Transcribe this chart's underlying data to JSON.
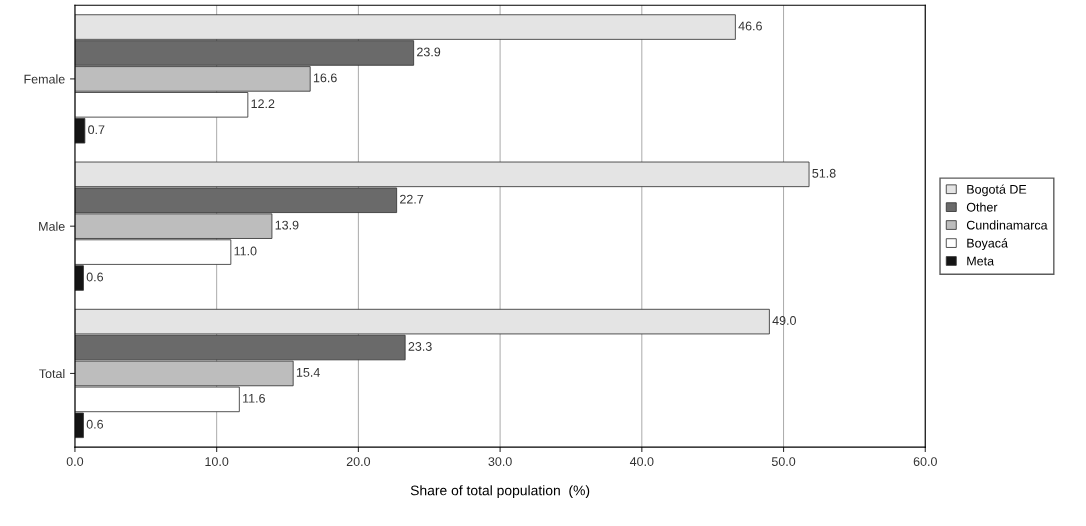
{
  "chart_data": {
    "type": "bar",
    "orientation": "horizontal",
    "xlabel": "Share of total population  (%)",
    "categories": [
      "Female",
      "Male",
      "Total"
    ],
    "series": [
      {
        "name": "Bogotá DE",
        "color": "#e4e4e4",
        "values": [
          46.6,
          51.8,
          49.0
        ],
        "value_labels": [
          "46.6",
          "51.8",
          "49.0"
        ]
      },
      {
        "name": "Other",
        "color": "#6a6a6a",
        "values": [
          23.9,
          22.7,
          23.3
        ],
        "value_labels": [
          "23.9",
          "22.7",
          "23.3"
        ]
      },
      {
        "name": "Cundinamarca",
        "color": "#bdbdbd",
        "values": [
          16.6,
          13.9,
          15.4
        ],
        "value_labels": [
          "16.6",
          "13.9",
          "15.4"
        ]
      },
      {
        "name": "Boyacá",
        "color": "#ffffff",
        "values": [
          12.2,
          11.0,
          11.6
        ],
        "value_labels": [
          "12.2",
          "11.0",
          "11.6"
        ]
      },
      {
        "name": "Meta",
        "color": "#141414",
        "values": [
          0.7,
          0.6,
          0.6
        ],
        "value_labels": [
          "0.7",
          "0.6",
          "0.6"
        ]
      }
    ],
    "xlim": [
      0,
      60
    ],
    "xticks": [
      {
        "value": 0,
        "label": "0.0"
      },
      {
        "value": 10,
        "label": "10.0"
      },
      {
        "value": 20,
        "label": "20.0"
      },
      {
        "value": 30,
        "label": "30.0"
      },
      {
        "value": 40,
        "label": "40.0"
      },
      {
        "value": 50,
        "label": "50.0"
      },
      {
        "value": 60,
        "label": "60.0"
      }
    ],
    "grid": "x",
    "legend": "right"
  }
}
